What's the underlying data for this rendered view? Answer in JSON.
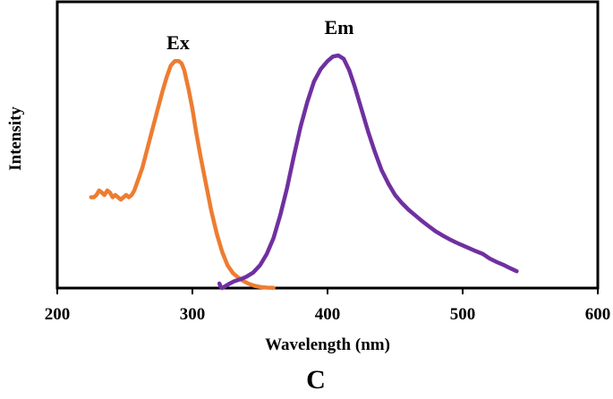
{
  "panel_label": "C",
  "chart_data": {
    "type": "line",
    "title": "",
    "xlabel": "Wavelength (nm)",
    "ylabel": "Intensity",
    "xlim": [
      200,
      600
    ],
    "ylim": [
      0,
      1.08
    ],
    "xticks": [
      200,
      300,
      400,
      500,
      600
    ],
    "xtick_labels": [
      "200",
      "300",
      "400",
      "500",
      "600"
    ],
    "y_ticks_shown": false,
    "grid": false,
    "legend": "none (series labeled directly)",
    "series": [
      {
        "name": "Ex",
        "color": "#ED7D31",
        "points": [
          [
            225,
            0.4
          ],
          [
            227,
            0.4
          ],
          [
            229,
            0.41
          ],
          [
            231,
            0.43
          ],
          [
            233,
            0.42
          ],
          [
            235,
            0.41
          ],
          [
            237,
            0.43
          ],
          [
            239,
            0.42
          ],
          [
            241,
            0.4
          ],
          [
            243,
            0.41
          ],
          [
            245,
            0.4
          ],
          [
            247,
            0.39
          ],
          [
            249,
            0.4
          ],
          [
            251,
            0.41
          ],
          [
            253,
            0.4
          ],
          [
            255,
            0.41
          ],
          [
            257,
            0.43
          ],
          [
            260,
            0.48
          ],
          [
            263,
            0.53
          ],
          [
            266,
            0.6
          ],
          [
            270,
            0.69
          ],
          [
            274,
            0.78
          ],
          [
            278,
            0.87
          ],
          [
            281,
            0.93
          ],
          [
            284,
            0.98
          ],
          [
            287,
            1.0
          ],
          [
            290,
            1.0
          ],
          [
            292,
            0.99
          ],
          [
            294,
            0.96
          ],
          [
            297,
            0.88
          ],
          [
            300,
            0.79
          ],
          [
            303,
            0.68
          ],
          [
            306,
            0.58
          ],
          [
            310,
            0.46
          ],
          [
            314,
            0.34
          ],
          [
            318,
            0.24
          ],
          [
            322,
            0.16
          ],
          [
            326,
            0.1
          ],
          [
            330,
            0.066
          ],
          [
            334,
            0.046
          ],
          [
            338,
            0.03
          ],
          [
            342,
            0.018
          ],
          [
            346,
            0.01
          ],
          [
            350,
            0.005
          ],
          [
            355,
            0.002
          ],
          [
            360,
            0.001
          ]
        ]
      },
      {
        "name": "Em",
        "color": "#7030A0",
        "points": [
          [
            320,
            0.02
          ],
          [
            321,
            0.005
          ],
          [
            322,
            0.0
          ],
          [
            324,
            0.007
          ],
          [
            327,
            0.018
          ],
          [
            331,
            0.03
          ],
          [
            336,
            0.04
          ],
          [
            340,
            0.05
          ],
          [
            345,
            0.068
          ],
          [
            350,
            0.1
          ],
          [
            355,
            0.15
          ],
          [
            360,
            0.22
          ],
          [
            365,
            0.32
          ],
          [
            370,
            0.44
          ],
          [
            375,
            0.58
          ],
          [
            380,
            0.71
          ],
          [
            385,
            0.82
          ],
          [
            390,
            0.91
          ],
          [
            395,
            0.965
          ],
          [
            400,
            1.0
          ],
          [
            404,
            1.02
          ],
          [
            408,
            1.025
          ],
          [
            412,
            1.01
          ],
          [
            416,
            0.96
          ],
          [
            420,
            0.89
          ],
          [
            425,
            0.79
          ],
          [
            430,
            0.69
          ],
          [
            435,
            0.6
          ],
          [
            440,
            0.52
          ],
          [
            445,
            0.46
          ],
          [
            450,
            0.41
          ],
          [
            455,
            0.375
          ],
          [
            460,
            0.345
          ],
          [
            465,
            0.32
          ],
          [
            470,
            0.295
          ],
          [
            475,
            0.272
          ],
          [
            480,
            0.25
          ],
          [
            485,
            0.232
          ],
          [
            490,
            0.216
          ],
          [
            495,
            0.201
          ],
          [
            500,
            0.188
          ],
          [
            505,
            0.175
          ],
          [
            510,
            0.162
          ],
          [
            515,
            0.15
          ],
          [
            520,
            0.13
          ],
          [
            525,
            0.115
          ],
          [
            530,
            0.103
          ],
          [
            535,
            0.088
          ],
          [
            540,
            0.074
          ]
        ]
      }
    ]
  }
}
